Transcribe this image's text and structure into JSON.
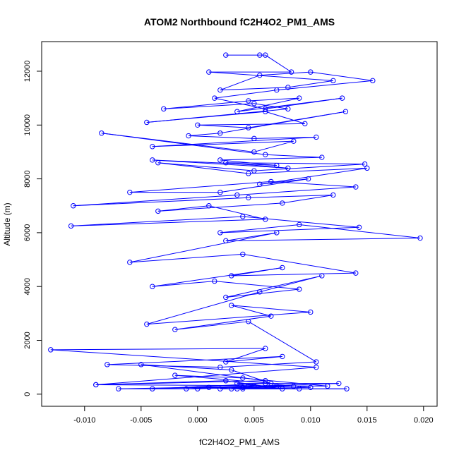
{
  "chart_data": {
    "type": "line",
    "title": "ATOM2 Northbound fC2H4O2_PM1_AMS",
    "xlabel": "fC2H4O2_PM1_AMS",
    "ylabel": "Altitude (m)",
    "xlim": [
      -0.0138,
      0.0212
    ],
    "ylim": [
      -450,
      13100
    ],
    "x_ticks": [
      -0.01,
      -0.005,
      0.0,
      0.005,
      0.01,
      0.015,
      0.02
    ],
    "x_tick_labels": [
      "-0.010",
      "-0.005",
      "0.000",
      "0.005",
      "0.010",
      "0.015",
      "0.020"
    ],
    "y_ticks": [
      0,
      2000,
      4000,
      6000,
      8000,
      10000,
      12000
    ],
    "y_tick_labels": [
      "0",
      "2000",
      "4000",
      "6000",
      "8000",
      "10000",
      "12000"
    ],
    "grid": false,
    "legend": "none",
    "series_color": "#0000ff",
    "marker": "open-circle",
    "series": [
      {
        "x": [
          0.0025,
          0.0055,
          0.006,
          0.0083,
          0.001,
          0.012,
          0.008,
          0.002,
          0.0055,
          0.01,
          0.0155,
          0.007,
          0.0015,
          0.006,
          0.0128,
          0.0035,
          0.009,
          0.0045,
          -0.003,
          0.005,
          0.008,
          -0.0045,
          0.006,
          0.0095,
          0.0,
          0.0045,
          0.0131,
          0.002,
          -0.0008,
          0.005,
          0.0105,
          -0.004,
          0.0085,
          0.005,
          -0.0085,
          0.006,
          0.011,
          0.002,
          0.007,
          -0.004,
          0.008,
          0.0025,
          0.0148,
          0.005,
          -0.0035,
          0.0045,
          0.015,
          0.0055,
          0.0098,
          0.002,
          -0.006,
          0.0065,
          0.014,
          0.0035,
          -0.011,
          0.0045,
          0.012,
          0.0075,
          -0.0035,
          0.001,
          0.006,
          -0.0112,
          0.004,
          0.0143,
          0.002,
          0.009,
          0.0197,
          0.0025,
          0.007,
          -0.006,
          0.004,
          0.014,
          0.003,
          0.0075,
          -0.004,
          0.0015,
          0.009,
          0.0025,
          0.011,
          0.0055,
          -0.0045,
          0.01,
          0.003,
          0.0065,
          -0.002,
          0.0045,
          0.0105,
          0.002,
          -0.008,
          0.0075,
          0.0025,
          0.006,
          -0.013,
          0.0105,
          -0.009,
          0.006,
          -0.005,
          0.003,
          0.0065,
          -0.002,
          0.004,
          0.0115,
          -0.009,
          0.0025,
          0.0075,
          0.0035,
          0.0125,
          0.005,
          -0.007,
          0.0,
          0.0085,
          0.004,
          0.0132,
          0.002,
          0.0045,
          -0.004,
          0.006,
          0.01,
          0.003,
          0.007,
          0.004,
          0.009,
          0.001,
          -0.001,
          0.005,
          0.0035
        ],
        "y": [
          12600,
          12600,
          12600,
          11970,
          11970,
          11650,
          11400,
          11300,
          11850,
          11970,
          11650,
          11300,
          11000,
          10600,
          11000,
          10500,
          11000,
          10900,
          10600,
          10800,
          10600,
          10100,
          10500,
          10050,
          10000,
          9900,
          10500,
          9700,
          9600,
          9500,
          9550,
          9200,
          9400,
          9000,
          9700,
          8900,
          8800,
          8700,
          8500,
          8700,
          8400,
          8600,
          8550,
          8300,
          8600,
          8200,
          8400,
          7800,
          8000,
          7500,
          7500,
          7900,
          7700,
          7400,
          7000,
          7300,
          7400,
          7100,
          6800,
          7000,
          6500,
          6250,
          6600,
          6200,
          6000,
          6300,
          5800,
          5700,
          6000,
          4900,
          5200,
          4500,
          4400,
          4700,
          4000,
          4200,
          3900,
          3600,
          4400,
          3800,
          2600,
          3050,
          3300,
          2900,
          2400,
          2700,
          1200,
          1000,
          1100,
          1400,
          1200,
          1700,
          1650,
          1000,
          350,
          500,
          1100,
          900,
          400,
          700,
          600,
          300,
          350,
          500,
          200,
          400,
          400,
          300,
          200,
          200,
          300,
          200,
          200,
          200,
          300,
          200,
          400,
          250,
          200,
          300,
          250,
          200,
          250,
          200,
          300,
          200
        ]
      }
    ]
  }
}
